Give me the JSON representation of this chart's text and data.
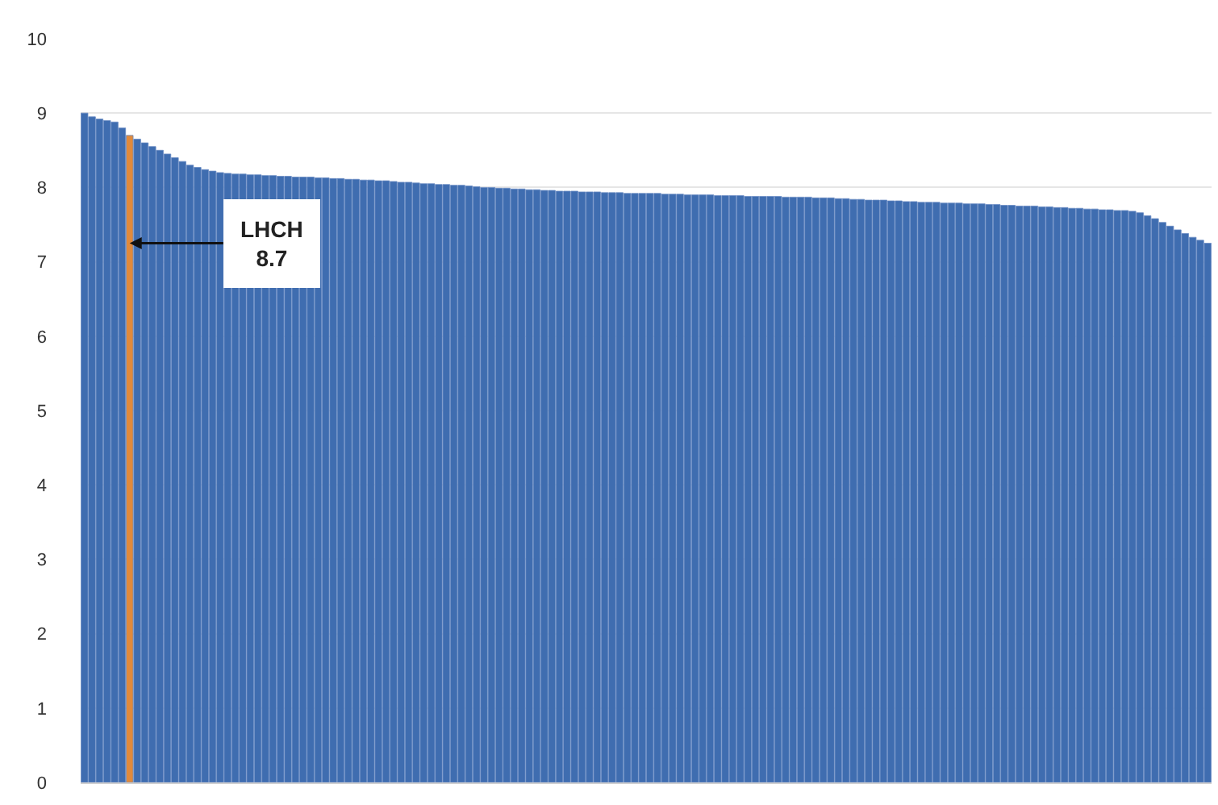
{
  "chart_data": {
    "type": "bar",
    "categories": [
      null,
      null,
      null,
      null,
      null,
      null,
      null,
      null,
      null,
      null,
      null,
      null,
      null,
      null,
      null,
      null,
      null,
      null,
      null,
      null,
      null,
      null,
      null,
      null,
      null,
      null,
      null,
      null,
      null,
      null,
      null,
      null,
      null,
      null,
      null,
      null,
      null,
      null,
      null,
      null,
      null,
      null,
      null,
      null,
      null,
      null,
      null,
      null,
      null,
      null,
      null,
      null,
      null,
      null,
      null,
      null,
      null,
      null,
      null,
      null,
      null,
      null,
      null,
      null,
      null,
      null,
      null,
      null,
      null,
      null,
      null,
      null,
      null,
      null,
      null,
      null,
      null,
      null,
      null,
      null,
      null,
      null,
      null,
      null,
      null,
      null,
      null,
      null,
      null,
      null,
      null,
      null,
      null,
      null,
      null,
      null,
      null,
      null,
      null,
      null,
      null,
      null,
      null,
      null,
      null,
      null,
      null,
      null,
      null,
      null,
      null,
      null,
      null,
      null,
      null,
      null,
      null,
      null,
      null,
      null,
      null,
      null,
      null,
      null,
      null,
      null,
      null,
      null,
      null,
      null,
      null,
      null,
      null,
      null,
      null,
      null,
      null,
      null,
      null,
      null,
      null,
      null,
      null,
      null,
      null,
      null,
      null,
      null,
      null,
      null
    ],
    "values": [
      9.0,
      8.95,
      8.92,
      8.9,
      8.88,
      8.8,
      8.7,
      8.65,
      8.6,
      8.55,
      8.5,
      8.45,
      8.4,
      8.35,
      8.3,
      8.27,
      8.24,
      8.22,
      8.2,
      8.19,
      8.18,
      8.18,
      8.17,
      8.17,
      8.16,
      8.16,
      8.15,
      8.15,
      8.14,
      8.14,
      8.14,
      8.13,
      8.13,
      8.12,
      8.12,
      8.11,
      8.11,
      8.1,
      8.1,
      8.09,
      8.09,
      8.08,
      8.07,
      8.07,
      8.06,
      8.05,
      8.05,
      8.04,
      8.04,
      8.03,
      8.03,
      8.02,
      8.01,
      8.0,
      8.0,
      7.99,
      7.99,
      7.98,
      7.98,
      7.97,
      7.97,
      7.96,
      7.96,
      7.95,
      7.95,
      7.95,
      7.94,
      7.94,
      7.94,
      7.93,
      7.93,
      7.93,
      7.92,
      7.92,
      7.92,
      7.92,
      7.92,
      7.91,
      7.91,
      7.91,
      7.9,
      7.9,
      7.9,
      7.9,
      7.89,
      7.89,
      7.89,
      7.89,
      7.88,
      7.88,
      7.88,
      7.88,
      7.88,
      7.87,
      7.87,
      7.87,
      7.87,
      7.86,
      7.86,
      7.86,
      7.85,
      7.85,
      7.84,
      7.84,
      7.83,
      7.83,
      7.83,
      7.82,
      7.82,
      7.81,
      7.81,
      7.8,
      7.8,
      7.8,
      7.79,
      7.79,
      7.79,
      7.78,
      7.78,
      7.78,
      7.77,
      7.77,
      7.76,
      7.76,
      7.75,
      7.75,
      7.75,
      7.74,
      7.74,
      7.73,
      7.73,
      7.72,
      7.72,
      7.71,
      7.71,
      7.7,
      7.7,
      7.69,
      7.69,
      7.68,
      7.66,
      7.62,
      7.58,
      7.53,
      7.48,
      7.43,
      7.38,
      7.33,
      7.29,
      7.25
    ],
    "colors": [
      "#3f6db0",
      "#3f6db0",
      "#3f6db0",
      "#3f6db0",
      "#3f6db0",
      "#3f6db0",
      "#e08a3c",
      "#3f6db0",
      "#3f6db0",
      "#3f6db0",
      "#3f6db0",
      "#3f6db0",
      "#3f6db0",
      "#3f6db0",
      "#3f6db0",
      "#3f6db0",
      "#3f6db0",
      "#3f6db0",
      "#3f6db0",
      "#3f6db0",
      "#3f6db0",
      "#3f6db0",
      "#3f6db0",
      "#3f6db0",
      "#3f6db0",
      "#3f6db0",
      "#3f6db0",
      "#3f6db0",
      "#3f6db0",
      "#3f6db0",
      "#3f6db0",
      "#3f6db0",
      "#3f6db0",
      "#3f6db0",
      "#3f6db0",
      "#3f6db0",
      "#3f6db0",
      "#3f6db0",
      "#3f6db0",
      "#3f6db0",
      "#3f6db0",
      "#3f6db0",
      "#3f6db0",
      "#3f6db0",
      "#3f6db0",
      "#3f6db0",
      "#3f6db0",
      "#3f6db0",
      "#3f6db0",
      "#3f6db0",
      "#3f6db0",
      "#3f6db0",
      "#3f6db0",
      "#3f6db0",
      "#3f6db0",
      "#3f6db0",
      "#3f6db0",
      "#3f6db0",
      "#3f6db0",
      "#3f6db0",
      "#3f6db0",
      "#3f6db0",
      "#3f6db0",
      "#3f6db0",
      "#3f6db0",
      "#3f6db0",
      "#3f6db0",
      "#3f6db0",
      "#3f6db0",
      "#3f6db0",
      "#3f6db0",
      "#3f6db0",
      "#3f6db0",
      "#3f6db0",
      "#3f6db0",
      "#3f6db0",
      "#3f6db0",
      "#3f6db0",
      "#3f6db0",
      "#3f6db0",
      "#3f6db0",
      "#3f6db0",
      "#3f6db0",
      "#3f6db0",
      "#3f6db0",
      "#3f6db0",
      "#3f6db0",
      "#3f6db0",
      "#3f6db0",
      "#3f6db0",
      "#3f6db0",
      "#3f6db0",
      "#3f6db0",
      "#3f6db0",
      "#3f6db0",
      "#3f6db0",
      "#3f6db0",
      "#3f6db0",
      "#3f6db0",
      "#3f6db0",
      "#3f6db0",
      "#3f6db0",
      "#3f6db0",
      "#3f6db0",
      "#3f6db0",
      "#3f6db0",
      "#3f6db0",
      "#3f6db0",
      "#3f6db0",
      "#3f6db0",
      "#3f6db0",
      "#3f6db0",
      "#3f6db0",
      "#3f6db0",
      "#3f6db0",
      "#3f6db0",
      "#3f6db0",
      "#3f6db0",
      "#3f6db0",
      "#3f6db0",
      "#3f6db0",
      "#3f6db0",
      "#3f6db0",
      "#3f6db0",
      "#3f6db0",
      "#3f6db0",
      "#3f6db0",
      "#3f6db0",
      "#3f6db0",
      "#3f6db0",
      "#3f6db0",
      "#3f6db0",
      "#3f6db0",
      "#3f6db0",
      "#3f6db0",
      "#3f6db0",
      "#3f6db0",
      "#3f6db0",
      "#3f6db0",
      "#3f6db0",
      "#3f6db0",
      "#3f6db0",
      "#3f6db0",
      "#3f6db0",
      "#3f6db0",
      "#3f6db0",
      "#3f6db0",
      "#3f6db0",
      "#3f6db0",
      "#3f6db0"
    ],
    "ylim": [
      0,
      10
    ],
    "yticks": [
      0,
      1,
      2,
      3,
      4,
      5,
      6,
      7,
      8,
      9,
      10
    ],
    "grid": "y",
    "tick_labels": "y",
    "annotations": [
      {
        "text": "LHCH\n8.7",
        "y": 7.25
      }
    ]
  }
}
